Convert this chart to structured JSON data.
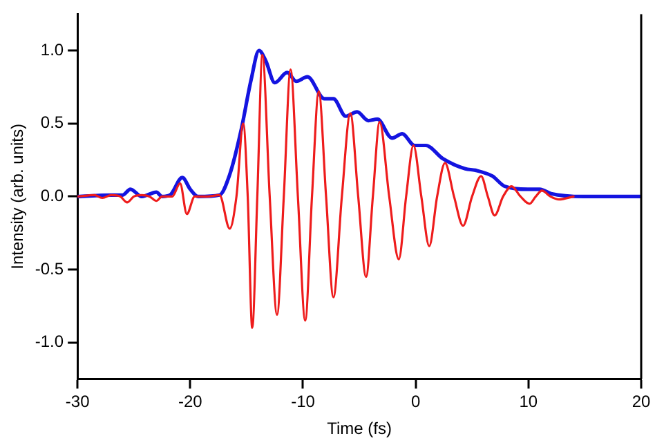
{
  "chart_data": {
    "type": "line",
    "xlabel": "Time (fs)",
    "ylabel": "Intensity (arb. units)",
    "xlim": [
      -30,
      20
    ],
    "xticks": [
      -30,
      -20,
      -10,
      0,
      10,
      20
    ],
    "ylim": [
      -1.25,
      1.25
    ],
    "yticks": [
      {
        "value": -1,
        "label": "-1.0"
      },
      {
        "value": -0.5,
        "label": "-0.5"
      },
      {
        "value": 0,
        "label": "0.0"
      },
      {
        "value": 0.5,
        "label": "0.5"
      },
      {
        "value": 1,
        "label": "1.0"
      }
    ],
    "grid": false,
    "legend": false,
    "marker": "none",
    "line_style": "solid",
    "series": [
      {
        "color": "#ee1c1c",
        "x": [
          -30,
          -28.5,
          -27.8,
          -27,
          -26.2,
          -25.6,
          -25,
          -24.3,
          -23.6,
          -23,
          -22.5,
          -21.6,
          -20.9,
          -20.3,
          -19.6,
          -18.5,
          -17.4,
          -16.5,
          -15.9,
          -15.3,
          -14.9,
          -14.5,
          -14.05,
          -13.6,
          -12.95,
          -12.3,
          -11.7,
          -11.1,
          -10.45,
          -9.8,
          -9.2,
          -8.6,
          -7.95,
          -7.3,
          -6.55,
          -5.8,
          -5.1,
          -4.4,
          -3.8,
          -3.2,
          -2.35,
          -1.5,
          -0.85,
          -0.2,
          0.5,
          1.2,
          1.9,
          2.6,
          3.4,
          4.2,
          5,
          5.8,
          6.4,
          7,
          7.75,
          8.5,
          9.3,
          10.1,
          10.65,
          11.2,
          11.95,
          12.7,
          14
        ],
        "values": [
          0,
          0.01,
          -0.01,
          0.01,
          0,
          -0.04,
          0,
          0.01,
          0,
          -0.03,
          0,
          0,
          0.09,
          -0.12,
          0,
          0,
          0.01,
          -0.22,
          0,
          0.5,
          0,
          -0.9,
          0,
          0.97,
          0,
          -0.81,
          0,
          0.87,
          0,
          -0.85,
          0,
          0.72,
          0,
          -0.69,
          0,
          0.57,
          0,
          -0.55,
          0,
          0.51,
          0,
          -0.43,
          0,
          0.35,
          0,
          -0.34,
          0,
          0.23,
          0,
          -0.2,
          0,
          0.14,
          0,
          -0.13,
          0,
          0.07,
          0,
          -0.05,
          0,
          0.04,
          0,
          -0.02,
          0
        ]
      },
      {
        "color": "#1414e0",
        "x": [
          -30,
          -27,
          -26,
          -25.3,
          -24.3,
          -23,
          -22.5,
          -21.8,
          -20.7,
          -20,
          -19.3,
          -17.4,
          -16.5,
          -15.5,
          -14.6,
          -13.9,
          -13.3,
          -12.5,
          -11.4,
          -10.6,
          -9.6,
          -8.1,
          -7.3,
          -6.2,
          -5.2,
          -4.2,
          -3.4,
          -2.1,
          -1.2,
          -0.1,
          0.9,
          2.4,
          4.4,
          5.3,
          6.8,
          7.9,
          10,
          11,
          12,
          14.9,
          20
        ],
        "values": [
          0,
          0.01,
          0.01,
          0.05,
          0,
          0.03,
          0,
          0.01,
          0.13,
          0.05,
          0,
          0.01,
          0.15,
          0.45,
          0.8,
          1,
          0.93,
          0.78,
          0.85,
          0.79,
          0.82,
          0.67,
          0.67,
          0.55,
          0.58,
          0.52,
          0.53,
          0.4,
          0.43,
          0.35,
          0.35,
          0.26,
          0.19,
          0.18,
          0.14,
          0.07,
          0.05,
          0.05,
          0.02,
          0,
          0
        ]
      }
    ]
  }
}
